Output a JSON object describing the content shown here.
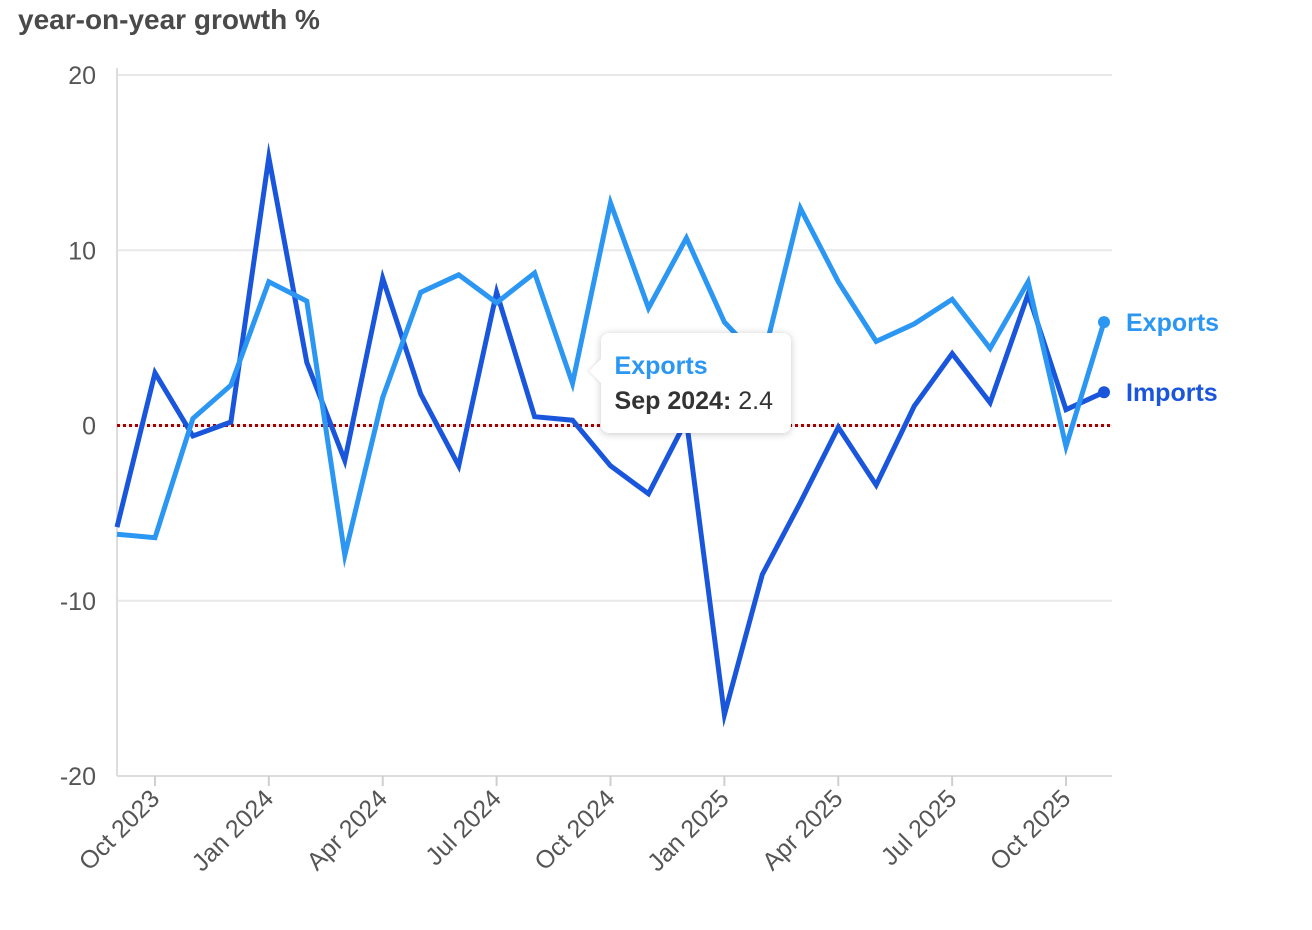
{
  "chart_data": {
    "type": "line",
    "title": "year-on-year growth %",
    "xlabel": "",
    "ylabel": "",
    "ylim": [
      -20,
      20
    ],
    "y_ticks": [
      20,
      10,
      0,
      -10,
      -20
    ],
    "x": [
      "Sep 2023",
      "Oct 2023",
      "Nov 2023",
      "Dec 2023",
      "Jan 2024",
      "Feb 2024",
      "Mar 2024",
      "Apr 2024",
      "May 2024",
      "Jun 2024",
      "Jul 2024",
      "Aug 2024",
      "Sep 2024",
      "Oct 2024",
      "Nov 2024",
      "Dec 2024",
      "Jan 2025",
      "Feb 2025",
      "Mar 2025",
      "Apr 2025",
      "May 2025",
      "Jun 2025",
      "Jul 2025",
      "Aug 2025",
      "Sep 2025",
      "Oct 2025",
      "Nov 2025"
    ],
    "x_tick_labels": [
      "Oct 2023",
      "Jan 2024",
      "Apr 2024",
      "Jul 2024",
      "Oct 2024",
      "Jan 2025",
      "Apr 2025",
      "Jul 2025",
      "Oct 2025"
    ],
    "series": [
      {
        "name": "Imports",
        "color": "#1a56db",
        "values": [
          -5.8,
          3.0,
          -0.6,
          0.2,
          15.3,
          3.6,
          -2.0,
          8.4,
          1.8,
          -2.3,
          7.6,
          0.5,
          0.3,
          -2.3,
          -3.9,
          0.3,
          -16.5,
          -8.5,
          -4.4,
          -0.1,
          -3.4,
          1.1,
          4.1,
          1.3,
          7.5,
          0.9,
          1.9
        ]
      },
      {
        "name": "Exports",
        "color": "#2b97f2",
        "values": [
          -6.2,
          -6.4,
          0.4,
          2.3,
          8.2,
          7.1,
          -7.4,
          1.6,
          7.6,
          8.6,
          7.0,
          8.7,
          2.4,
          12.7,
          6.7,
          10.7,
          5.9,
          3.6,
          12.4,
          8.2,
          4.8,
          5.8,
          7.2,
          4.4,
          8.2,
          -1.2,
          5.9
        ]
      }
    ],
    "reference_line": {
      "y": 0,
      "color": "#a30000",
      "style": "dotted"
    },
    "tooltip": {
      "series": "Exports",
      "date": "Sep 2024:",
      "value": "2.4"
    }
  }
}
